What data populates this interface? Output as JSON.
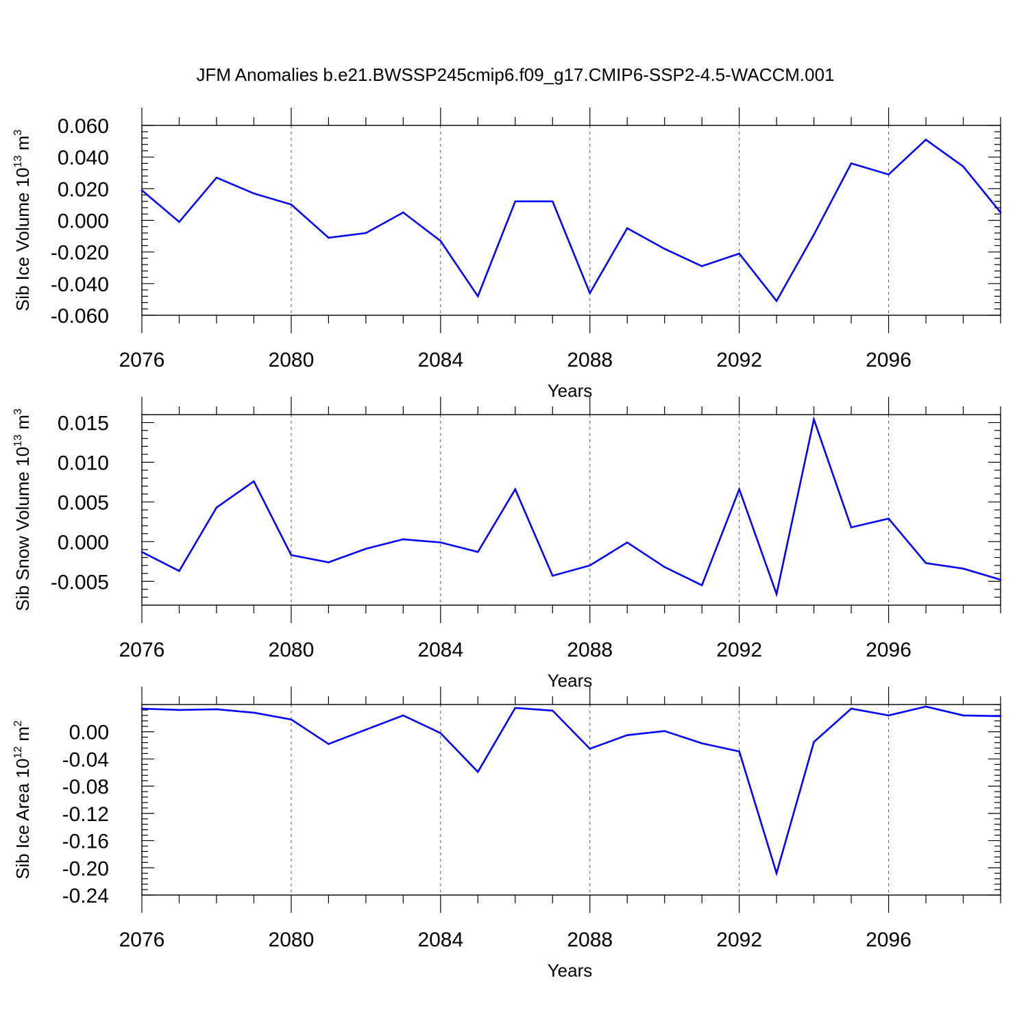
{
  "title": "JFM Anomalies b.e21.BWSSP245cmip6.f09_g17.CMIP6-SSP2-4.5-WACCM.001",
  "chart_data": [
    {
      "type": "line",
      "ylabel": "Sib Ice Volume",
      "ylabel_units": "10",
      "ylabel_exp": "13",
      "ylabel_unit_name": "m",
      "ylabel_unit_exp": "3",
      "xlabel": "Years",
      "xlim": [
        2076,
        2099
      ],
      "ylim": [
        -0.06,
        0.06
      ],
      "grid": "dashed vertical at major x ticks",
      "x_ticks": [
        2076,
        2080,
        2084,
        2088,
        2092,
        2096
      ],
      "x_tick_labels": [
        "2076",
        "2080",
        "2084",
        "2088",
        "2092",
        "2096"
      ],
      "y_ticks": [
        0.06,
        0.04,
        0.02,
        0.0,
        -0.02,
        -0.04,
        -0.06
      ],
      "y_tick_labels": [
        "0.060",
        "0.040",
        "0.020",
        "0.000",
        "-0.020",
        "-0.040",
        "-0.060"
      ],
      "color": "#0000ff",
      "x": [
        2076,
        2077,
        2078,
        2079,
        2080,
        2081,
        2082,
        2083,
        2084,
        2085,
        2086,
        2087,
        2088,
        2089,
        2090,
        2091,
        2092,
        2093,
        2094,
        2095,
        2096,
        2097,
        2098,
        2099
      ],
      "values": [
        0.019,
        -0.001,
        0.027,
        0.017,
        0.01,
        -0.011,
        -0.008,
        0.005,
        -0.013,
        -0.048,
        0.012,
        0.012,
        -0.046,
        -0.005,
        -0.018,
        -0.029,
        -0.021,
        -0.051,
        -0.009,
        0.036,
        0.029,
        0.051,
        0.034,
        0.005
      ]
    },
    {
      "type": "line",
      "ylabel": "Sib Snow Volume",
      "ylabel_units": "10",
      "ylabel_exp": "13",
      "ylabel_unit_name": "m",
      "ylabel_unit_exp": "3",
      "xlabel": "Years",
      "xlim": [
        2076,
        2099
      ],
      "ylim": [
        -0.008,
        0.016
      ],
      "grid": "dashed vertical at major x ticks",
      "x_ticks": [
        2076,
        2080,
        2084,
        2088,
        2092,
        2096
      ],
      "x_tick_labels": [
        "2076",
        "2080",
        "2084",
        "2088",
        "2092",
        "2096"
      ],
      "y_ticks": [
        0.015,
        0.01,
        0.005,
        0.0,
        -0.005
      ],
      "y_tick_labels": [
        "0.015",
        "0.010",
        "0.005",
        "0.000",
        "-0.005"
      ],
      "color": "#0000ff",
      "x": [
        2076,
        2077,
        2078,
        2079,
        2080,
        2081,
        2082,
        2083,
        2084,
        2085,
        2086,
        2087,
        2088,
        2089,
        2090,
        2091,
        2092,
        2093,
        2094,
        2095,
        2096,
        2097,
        2098,
        2099
      ],
      "values": [
        -0.0013,
        -0.0037,
        0.0043,
        0.0076,
        -0.0017,
        -0.0026,
        -0.0009,
        0.0003,
        -0.0001,
        -0.0013,
        0.0066,
        -0.0043,
        -0.003,
        -0.0001,
        -0.0032,
        -0.0055,
        0.0066,
        -0.0066,
        0.0154,
        0.0018,
        0.0029,
        -0.0027,
        -0.0034,
        -0.0048
      ]
    },
    {
      "type": "line",
      "ylabel": "Sib Ice Area",
      "ylabel_units": "10",
      "ylabel_exp": "12",
      "ylabel_unit_name": "m",
      "ylabel_unit_exp": "2",
      "xlabel": "Years",
      "xlim": [
        2076,
        2099
      ],
      "ylim": [
        -0.24,
        0.04
      ],
      "grid": "dashed vertical at major x ticks",
      "x_ticks": [
        2076,
        2080,
        2084,
        2088,
        2092,
        2096
      ],
      "x_tick_labels": [
        "2076",
        "2080",
        "2084",
        "2088",
        "2092",
        "2096"
      ],
      "y_ticks": [
        0.0,
        -0.04,
        -0.08,
        -0.12,
        -0.16,
        -0.2,
        -0.24
      ],
      "y_tick_labels": [
        "0.00",
        "-0.04",
        "-0.08",
        "-0.12",
        "-0.16",
        "-0.20",
        "-0.24"
      ],
      "color": "#0000ff",
      "x": [
        2076,
        2077,
        2078,
        2079,
        2080,
        2081,
        2082,
        2083,
        2084,
        2085,
        2086,
        2087,
        2088,
        2089,
        2090,
        2091,
        2092,
        2093,
        2094,
        2095,
        2096,
        2097,
        2098,
        2099
      ],
      "values": [
        0.034,
        0.032,
        0.033,
        0.028,
        0.018,
        -0.018,
        0.003,
        0.024,
        -0.002,
        -0.059,
        0.035,
        0.031,
        -0.025,
        -0.005,
        0.001,
        -0.017,
        -0.029,
        -0.208,
        -0.015,
        0.034,
        0.024,
        0.037,
        0.024,
        0.023
      ]
    }
  ]
}
